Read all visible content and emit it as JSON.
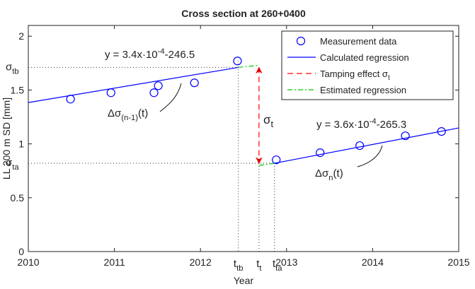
{
  "chart_data": {
    "type": "line",
    "title": "Cross section at 260+0400",
    "xlabel": "Year",
    "ylabel": "LL 200 m SD [mm]",
    "xlim": [
      2010,
      2015
    ],
    "xticks": [
      2010,
      2011,
      2012,
      2013,
      2014,
      2015
    ],
    "ylim": [
      0,
      2.1
    ],
    "yticks": [
      0,
      0.5,
      1,
      1.5,
      2
    ],
    "grid": false,
    "legend": "upper right",
    "series": [
      {
        "name": "Measurement data",
        "color": "#0000ff",
        "style": "marker",
        "x": [
          2010.49,
          2010.96,
          2011.46,
          2011.51,
          2011.93,
          2012.43,
          2012.88,
          2013.39,
          2013.85,
          2014.38,
          2014.8
        ],
        "values": [
          1.416,
          1.475,
          1.475,
          1.54,
          1.567,
          1.77,
          0.852,
          0.918,
          0.984,
          1.075,
          1.115
        ]
      },
      {
        "name": "Calculated regression",
        "color": "#0000ff",
        "style": "solid",
        "x": [
          2010,
          2012.44,
          2012.6,
          2012.86,
          2015
        ],
        "values": [
          1.384,
          1.71,
          null,
          0.82,
          1.148
        ]
      },
      {
        "name": "Tamping effect σ",
        "name_sub": "t",
        "color": "#ff0000",
        "style": "dashed",
        "x": [
          2012.68,
          2012.68
        ],
        "values": [
          1.71,
          0.82
        ]
      },
      {
        "name": "Estimated regression",
        "color": "#00cc00",
        "style": "dashdot",
        "x": [
          2012.44,
          2012.68,
          2012.6,
          2012.68,
          2012.86
        ],
        "values": [
          1.71,
          1.73,
          null,
          0.8,
          0.82
        ]
      }
    ],
    "annotations": [
      {
        "main": "y = 3.4x·10",
        "sup": "-4",
        "tail": "-246.5"
      },
      {
        "main": "y = 3.6x·10",
        "sup": "-4",
        "tail": "-265.3"
      },
      {
        "main": "Δσ",
        "sub": "(n-1)",
        "tail": "(t)"
      },
      {
        "main": "Δσ",
        "sub": "n",
        "tail": "(t)"
      },
      {
        "main": "σ",
        "sub": "t"
      }
    ],
    "y_marks": [
      {
        "value": 1.71,
        "main": "σ",
        "sub": "tb"
      },
      {
        "value": 0.82,
        "main": "σ",
        "sub": "ta"
      }
    ],
    "x_marks": [
      {
        "value": 2012.44,
        "main": "t",
        "sub": "tb"
      },
      {
        "value": 2012.68,
        "main": "t",
        "sub": "t"
      },
      {
        "value": 2012.86,
        "main": "t",
        "sub": "ta"
      }
    ]
  }
}
